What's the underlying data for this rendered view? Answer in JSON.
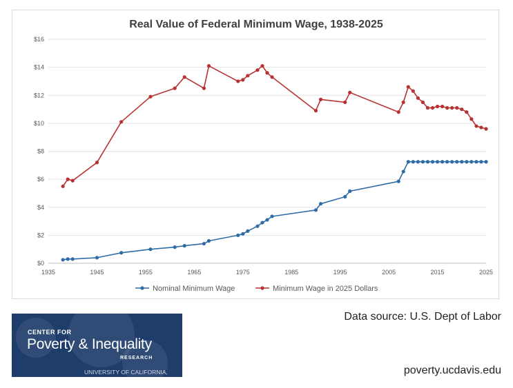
{
  "chart_data": {
    "type": "line",
    "title": "Real Value of Federal Minimum Wage, 1938-2025",
    "xlabel": "",
    "ylabel": "",
    "xlim": [
      1935,
      2025
    ],
    "ylim": [
      0,
      16
    ],
    "x_ticks": [
      "1935",
      "1945",
      "1955",
      "1965",
      "1975",
      "1985",
      "1995",
      "2005",
      "2015",
      "2025"
    ],
    "y_ticks": [
      "$0",
      "$2",
      "$4",
      "$6",
      "$8",
      "$10",
      "$12",
      "$14",
      "$16"
    ],
    "grid": "horizontal",
    "legend_position": "bottom",
    "series": [
      {
        "name": "Nominal Minimum Wage",
        "color": "#2e6ca8",
        "x": [
          1938,
          1939,
          1940,
          1945,
          1950,
          1956,
          1961,
          1963,
          1967,
          1968,
          1974,
          1975,
          1976,
          1978,
          1979,
          1980,
          1981,
          1990,
          1991,
          1996,
          1997,
          2007,
          2008,
          2009,
          2010,
          2011,
          2012,
          2013,
          2014,
          2015,
          2016,
          2017,
          2018,
          2019,
          2020,
          2021,
          2022,
          2023,
          2024,
          2025
        ],
        "values": [
          0.25,
          0.3,
          0.3,
          0.4,
          0.75,
          1.0,
          1.15,
          1.25,
          1.4,
          1.6,
          2.0,
          2.1,
          2.3,
          2.65,
          2.9,
          3.1,
          3.35,
          3.8,
          4.25,
          4.75,
          5.15,
          5.85,
          6.55,
          7.25,
          7.25,
          7.25,
          7.25,
          7.25,
          7.25,
          7.25,
          7.25,
          7.25,
          7.25,
          7.25,
          7.25,
          7.25,
          7.25,
          7.25,
          7.25,
          7.25
        ]
      },
      {
        "name": "Minimum Wage in 2025 Dollars",
        "color": "#b83232",
        "x": [
          1938,
          1939,
          1940,
          1945,
          1950,
          1956,
          1961,
          1963,
          1967,
          1968,
          1974,
          1975,
          1976,
          1978,
          1979,
          1980,
          1981,
          1990,
          1991,
          1996,
          1997,
          2007,
          2008,
          2009,
          2010,
          2011,
          2012,
          2013,
          2014,
          2015,
          2016,
          2017,
          2018,
          2019,
          2020,
          2021,
          2022,
          2023,
          2024,
          2025
        ],
        "values": [
          5.5,
          6.0,
          5.9,
          7.2,
          10.1,
          11.9,
          12.5,
          13.3,
          12.5,
          14.1,
          13.0,
          13.1,
          13.4,
          13.8,
          14.1,
          13.6,
          13.3,
          10.9,
          11.7,
          11.5,
          12.2,
          10.8,
          11.5,
          12.6,
          12.3,
          11.8,
          11.5,
          11.1,
          11.1,
          11.2,
          11.2,
          11.1,
          11.1,
          11.1,
          11.0,
          10.8,
          10.3,
          9.8,
          9.7,
          9.6
        ]
      }
    ]
  },
  "logo": {
    "line1": "CENTER FOR",
    "line2": "Poverty & Inequality",
    "line3": "RESEARCH",
    "line4": "UNIVERSITY OF CALIFORNIA, DAVIS"
  },
  "source_text": "Data source: U.S. Dept of Labor",
  "url_text": "poverty.ucdavis.edu"
}
